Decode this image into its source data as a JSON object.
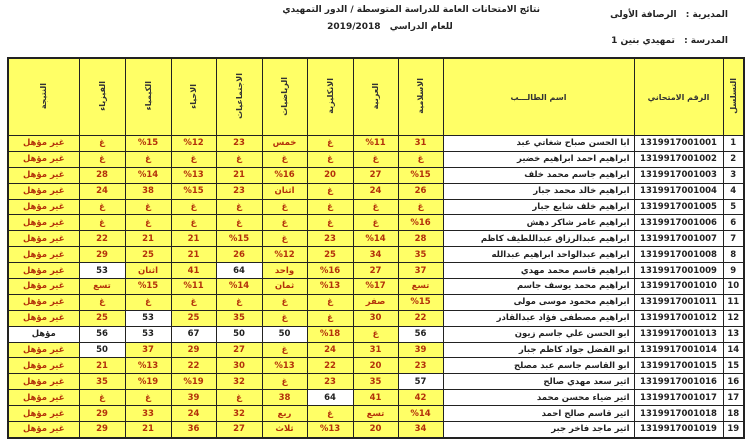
{
  "header": {
    "title": "نتائج الامتحانات العامة للدراسة المتوسطة / الدور التمهيدي",
    "year_label": "للعام الدراسي",
    "year": "2019/2018",
    "directorate_label": "المديرية :",
    "directorate": "الرصافة الأولى",
    "school_label": "المدرسة :",
    "school": "تمهيدي بنين 1"
  },
  "columns": {
    "seq": "التسلسل",
    "exam_no": "الرقم الامتحاني",
    "name": "اسم الطالـــب",
    "islamic": "الاسلامية",
    "arabic": "العربية",
    "english": "الانكليزية",
    "math": "الرياضيات",
    "social": "الاجتماعيات",
    "biology": "الاحياء",
    "chemistry": "الكيمياء",
    "physics": "الفيزياء",
    "result": "النتيجة"
  },
  "colors": {
    "fail_fill": "#ffff66",
    "fail_text": "#b3320a",
    "pass_fill": "#ffffff"
  },
  "rows": [
    {
      "seq": "1",
      "exam_no": "1319917001001",
      "name": "ابا الحسن صباح شغاتي عبد",
      "scores": [
        "31",
        "%11",
        "غ",
        "خمس",
        "23",
        "%12",
        "%15",
        "غ"
      ],
      "result": "غير مؤهل"
    },
    {
      "seq": "2",
      "exam_no": "1319917001002",
      "name": "ابراهيم احمد ابراهيم خضير",
      "scores": [
        "غ",
        "غ",
        "غ",
        "غ",
        "غ",
        "غ",
        "غ",
        "غ"
      ],
      "result": "غير مؤهل"
    },
    {
      "seq": "3",
      "exam_no": "1319917001003",
      "name": "ابراهيم جاسم محمد خلف",
      "scores": [
        "%15",
        "27",
        "20",
        "%16",
        "21",
        "%13",
        "%14",
        "28"
      ],
      "result": "غير مؤهل"
    },
    {
      "seq": "4",
      "exam_no": "1319917001004",
      "name": "ابراهيم خالد محمد جبار",
      "scores": [
        "26",
        "24",
        "غ",
        "اثنان",
        "23",
        "%15",
        "38",
        "24"
      ],
      "result": "غير مؤهل"
    },
    {
      "seq": "5",
      "exam_no": "1319917001005",
      "name": "ابراهيم خلف شايع جبار",
      "scores": [
        "غ",
        "غ",
        "غ",
        "غ",
        "غ",
        "غ",
        "غ",
        "غ"
      ],
      "result": "غير مؤهل"
    },
    {
      "seq": "6",
      "exam_no": "1319917001006",
      "name": "ابراهيم عامر شاكر دهش",
      "scores": [
        "%16",
        "غ",
        "غ",
        "غ",
        "غ",
        "غ",
        "غ",
        "غ"
      ],
      "result": "غير مؤهل"
    },
    {
      "seq": "7",
      "exam_no": "1319917001007",
      "name": "ابراهيم عبدالرزاق عبداللطيف كاظم",
      "scores": [
        "28",
        "%14",
        "23",
        "غ",
        "%15",
        "21",
        "21",
        "22"
      ],
      "result": "غير مؤهل"
    },
    {
      "seq": "8",
      "exam_no": "1319917001008",
      "name": "ابراهيم عبدالواحد ابراهيم عبدالله",
      "scores": [
        "35",
        "34",
        "25",
        "%12",
        "26",
        "21",
        "25",
        "29"
      ],
      "result": "غير مؤهل"
    },
    {
      "seq": "9",
      "exam_no": "1319917001009",
      "name": "ابراهيم قاسم محمد مهدي",
      "scores": [
        "37",
        "27",
        "%16",
        "واحد",
        "64",
        "41",
        "اثنان",
        "53"
      ],
      "result": "غير مؤهل"
    },
    {
      "seq": "10",
      "exam_no": "1319917001010",
      "name": "ابراهيم محمد يوسف جاسم",
      "scores": [
        "تسع",
        "%17",
        "%13",
        "ثمان",
        "%14",
        "%11",
        "%15",
        "تسع"
      ],
      "result": "غير مؤهل"
    },
    {
      "seq": "11",
      "exam_no": "1319917001011",
      "name": "ابراهيم محمود موسى مولى",
      "scores": [
        "%15",
        "صفر",
        "غ",
        "غ",
        "غ",
        "غ",
        "غ",
        "غ"
      ],
      "result": "غير مؤهل"
    },
    {
      "seq": "12",
      "exam_no": "1319917001012",
      "name": "ابراهيم مصطفى فؤاد عبدالقادر",
      "scores": [
        "22",
        "30",
        "غ",
        "غ",
        "35",
        "25",
        "53",
        "25"
      ],
      "result": "غير مؤهل"
    },
    {
      "seq": "13",
      "exam_no": "1319917001013",
      "name": "ابو الحسن علي جاسم زيون",
      "scores": [
        "56",
        "غ",
        "%18",
        "50",
        "50",
        "67",
        "53",
        "56"
      ],
      "result": "مؤهل",
      "qualified": true
    },
    {
      "seq": "14",
      "exam_no": "1319917001014",
      "name": "ابو الفضل جواد كاظم جبار",
      "scores": [
        "39",
        "31",
        "24",
        "غ",
        "27",
        "29",
        "37",
        "50"
      ],
      "result": "غير مؤهل"
    },
    {
      "seq": "15",
      "exam_no": "1319917001015",
      "name": "ابو القاسم جاسم عبد مصلح",
      "scores": [
        "23",
        "20",
        "22",
        "%13",
        "30",
        "22",
        "%13",
        "21"
      ],
      "result": "غير مؤهل"
    },
    {
      "seq": "16",
      "exam_no": "1319917001016",
      "name": "اثير سعد مهدي صالح",
      "scores": [
        "57",
        "35",
        "23",
        "غ",
        "32",
        "%19",
        "%19",
        "35"
      ],
      "result": "غير مؤهل"
    },
    {
      "seq": "17",
      "exam_no": "1319917001017",
      "name": "اثير ضياء محسن محمد",
      "scores": [
        "42",
        "41",
        "64",
        "38",
        "غ",
        "39",
        "غ",
        "غ"
      ],
      "result": "غير مؤهل"
    },
    {
      "seq": "18",
      "exam_no": "1319917001018",
      "name": "اثير قاسم صالح احمد",
      "scores": [
        "%14",
        "تسع",
        "غ",
        "ربع",
        "32",
        "24",
        "33",
        "29"
      ],
      "result": "غير مؤهل"
    },
    {
      "seq": "19",
      "exam_no": "1319917001019",
      "name": "اثير ماجد فاخر جبر",
      "scores": [
        "34",
        "20",
        "%13",
        "ثلاث",
        "27",
        "36",
        "21",
        "29"
      ],
      "result": "غير مؤهل"
    }
  ]
}
